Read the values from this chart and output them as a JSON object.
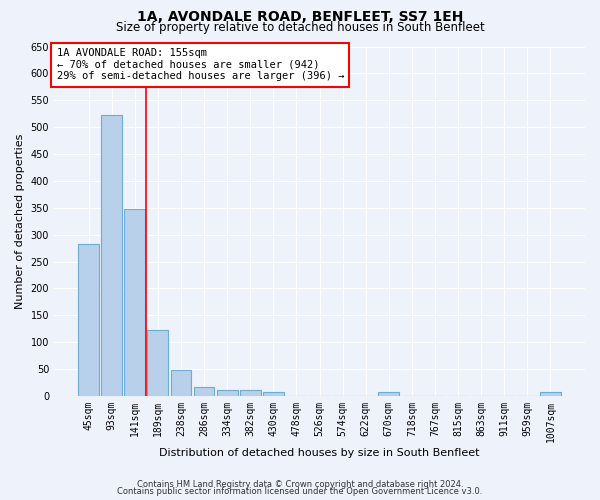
{
  "title": "1A, AVONDALE ROAD, BENFLEET, SS7 1EH",
  "subtitle": "Size of property relative to detached houses in South Benfleet",
  "xlabel": "Distribution of detached houses by size in South Benfleet",
  "ylabel": "Number of detached properties",
  "categories": [
    "45sqm",
    "93sqm",
    "141sqm",
    "189sqm",
    "238sqm",
    "286sqm",
    "334sqm",
    "382sqm",
    "430sqm",
    "478sqm",
    "526sqm",
    "574sqm",
    "622sqm",
    "670sqm",
    "718sqm",
    "767sqm",
    "815sqm",
    "863sqm",
    "911sqm",
    "959sqm",
    "1007sqm"
  ],
  "values": [
    283,
    522,
    347,
    122,
    49,
    17,
    11,
    11,
    7,
    0,
    0,
    0,
    0,
    8,
    0,
    0,
    0,
    0,
    0,
    0,
    7
  ],
  "bar_color": "#b8d0ea",
  "bar_edge_color": "#6aadd5",
  "vline_x": 2.5,
  "vline_color": "red",
  "annotation_title": "1A AVONDALE ROAD: 155sqm",
  "annotation_line2": "← 70% of detached houses are smaller (942)",
  "annotation_line3": "29% of semi-detached houses are larger (396) →",
  "annotation_box_color": "white",
  "annotation_box_edge": "red",
  "ylim": [
    0,
    650
  ],
  "yticks": [
    0,
    50,
    100,
    150,
    200,
    250,
    300,
    350,
    400,
    450,
    500,
    550,
    600,
    650
  ],
  "footer1": "Contains HM Land Registry data © Crown copyright and database right 2024.",
  "footer2": "Contains public sector information licensed under the Open Government Licence v3.0.",
  "bg_color": "#edf2fb",
  "plot_bg_color": "#edf2fb",
  "grid_color": "#ffffff",
  "title_fontsize": 10,
  "subtitle_fontsize": 8.5,
  "axis_label_fontsize": 8,
  "tick_fontsize": 7,
  "annotation_fontsize": 7.5
}
